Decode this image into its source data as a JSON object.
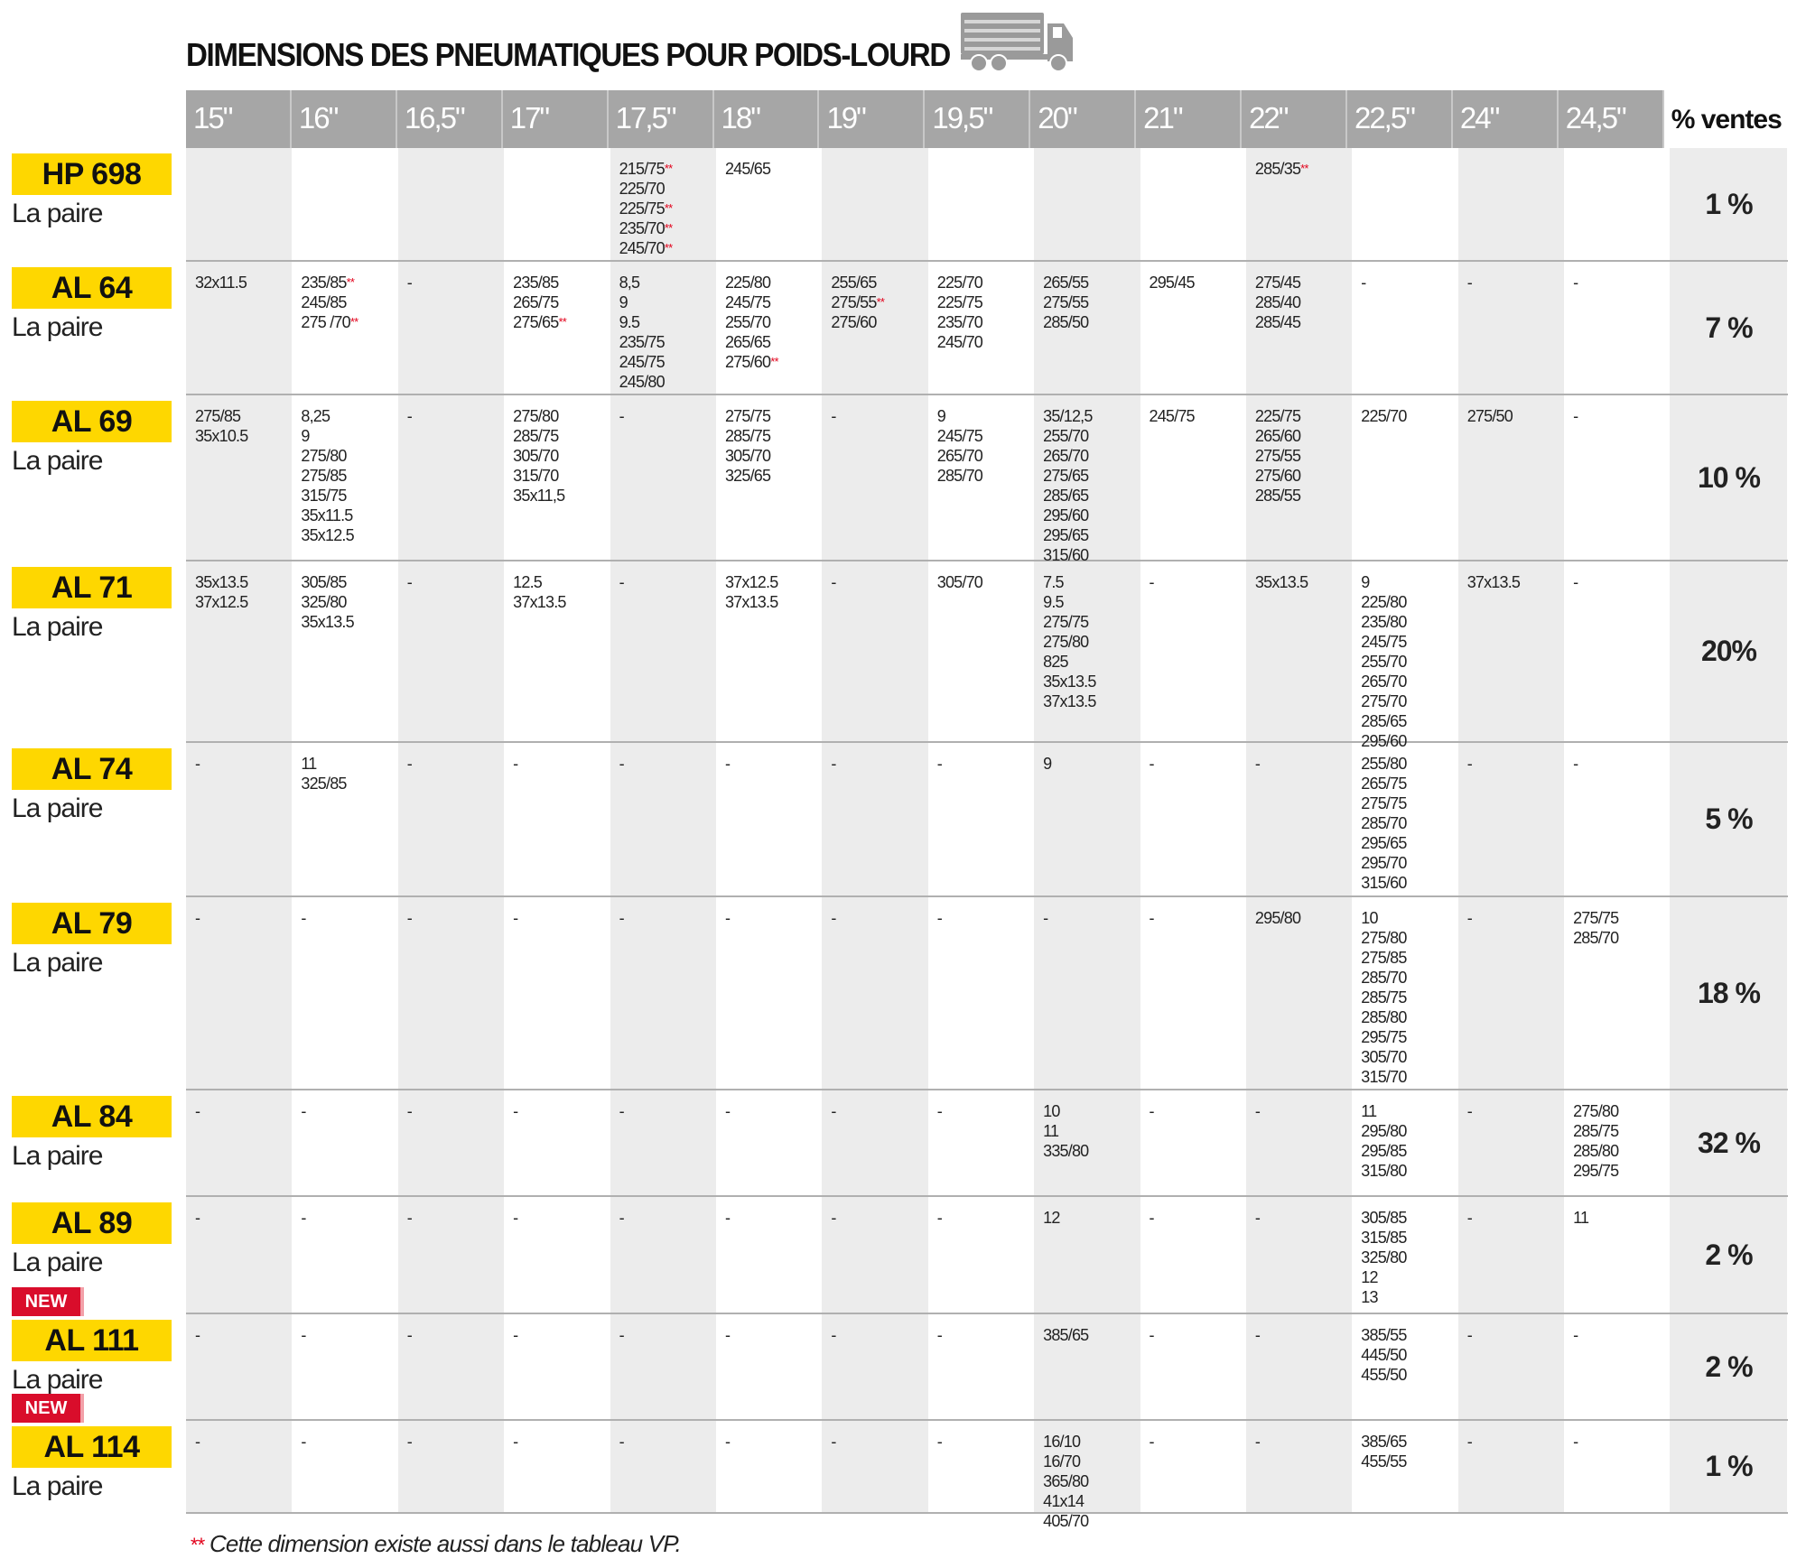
{
  "title": "DIMENSIONS DES PNEUMATIQUES POUR POIDS-LOURD",
  "icons": {
    "truck": "truck-icon"
  },
  "colors": {
    "label_bg": "#fed700",
    "new_badge": "#d90d2b",
    "header_bg": "#a6a6a6",
    "asterisk": "#e2001a"
  },
  "columns": [
    "15\"",
    "16\"",
    "16,5\"",
    "17\"",
    "17,5\"",
    "18\"",
    "19\"",
    "19,5\"",
    "20\"",
    "21\"",
    "22\"",
    "22,5\"",
    "24\"",
    "24,5\""
  ],
  "pct_header": "% ventes",
  "pair_label": "La paire",
  "new_label": "NEW",
  "rows": [
    {
      "model": "HP 698",
      "pct": "1 %",
      "new": false,
      "cells": [
        [],
        [],
        [],
        [],
        [
          "215/75**",
          "225/70",
          "225/75**",
          "235/70**",
          "245/70**"
        ],
        [
          "245/65"
        ],
        [],
        [],
        [],
        [],
        [
          "285/35**"
        ],
        [],
        [],
        []
      ]
    },
    {
      "model": "AL 64",
      "pct": "7 %",
      "new": false,
      "cells": [
        [
          "32x11.5"
        ],
        [
          "235/85**",
          "245/85",
          "275 /70**"
        ],
        [
          "-"
        ],
        [
          "235/85",
          "265/75",
          "275/65**"
        ],
        [
          "8,5",
          "9",
          "9.5",
          "235/75",
          "245/75",
          "245/80"
        ],
        [
          "225/80",
          "245/75",
          "255/70",
          "265/65",
          "275/60**"
        ],
        [
          "255/65",
          "275/55**",
          "275/60"
        ],
        [
          "225/70",
          "225/75",
          "235/70",
          "245/70"
        ],
        [
          "265/55",
          "275/55",
          "285/50"
        ],
        [
          "295/45"
        ],
        [
          "275/45",
          "285/40",
          "285/45"
        ],
        [
          "-"
        ],
        [
          "-"
        ],
        [
          "-"
        ]
      ]
    },
    {
      "model": "AL 69",
      "pct": "10 %",
      "new": false,
      "cells": [
        [
          "275/85",
          "35x10.5"
        ],
        [
          "8,25",
          "9",
          "275/80",
          "275/85",
          "315/75",
          "35x11.5",
          "35x12.5"
        ],
        [
          "-"
        ],
        [
          "275/80",
          "285/75",
          "305/70",
          "315/70",
          "35x11,5"
        ],
        [
          "-"
        ],
        [
          "275/75",
          "285/75",
          "305/70",
          "325/65"
        ],
        [
          "-"
        ],
        [
          "9",
          "245/75",
          "265/70",
          "285/70"
        ],
        [
          "35/12,5",
          "255/70",
          "265/70",
          "275/65",
          "285/65",
          "295/60",
          "295/65",
          "315/60"
        ],
        [
          "245/75"
        ],
        [
          "225/75",
          "265/60",
          "275/55",
          "275/60",
          "285/55"
        ],
        [
          "225/70"
        ],
        [
          "275/50"
        ],
        [
          "-"
        ]
      ]
    },
    {
      "model": "AL 71",
      "pct": "20%",
      "new": false,
      "cells": [
        [
          "35x13.5",
          "37x12.5"
        ],
        [
          "305/85",
          "325/80",
          "35x13.5"
        ],
        [
          "-"
        ],
        [
          "12.5",
          "37x13.5"
        ],
        [
          "-"
        ],
        [
          "37x12.5",
          "37x13.5"
        ],
        [
          "-"
        ],
        [
          "305/70"
        ],
        [
          "7.5",
          "9.5",
          "275/75",
          "275/80",
          "825",
          "35x13.5",
          "37x13.5"
        ],
        [
          "-"
        ],
        [
          "35x13.5"
        ],
        [
          "9",
          "225/80",
          "235/80",
          "245/75",
          "255/70",
          "265/70",
          "275/70",
          "285/65",
          "295/60"
        ],
        [
          "37x13.5"
        ],
        [
          "-"
        ]
      ]
    },
    {
      "model": "AL 74",
      "pct": "5 %",
      "new": false,
      "cells": [
        [
          "-"
        ],
        [
          "11",
          "325/85"
        ],
        [
          "-"
        ],
        [
          "-"
        ],
        [
          "-"
        ],
        [
          "-"
        ],
        [
          "-"
        ],
        [
          "-"
        ],
        [
          "9"
        ],
        [
          "-"
        ],
        [
          "-"
        ],
        [
          "255/80",
          "265/75",
          "275/75",
          "285/70",
          "295/65",
          "295/70",
          "315/60"
        ],
        [
          "-"
        ],
        [
          "-"
        ]
      ]
    },
    {
      "model": "AL 79",
      "pct": "18 %",
      "new": false,
      "cells": [
        [
          "-"
        ],
        [
          "-"
        ],
        [
          "-"
        ],
        [
          "-"
        ],
        [
          "-"
        ],
        [
          "-"
        ],
        [
          "-"
        ],
        [
          "-"
        ],
        [
          "-"
        ],
        [
          "-"
        ],
        [
          "295/80"
        ],
        [
          "10",
          "275/80",
          "275/85",
          "285/70",
          "285/75",
          "285/80",
          "295/75",
          "305/70",
          "315/70"
        ],
        [
          "-"
        ],
        [
          "275/75",
          "285/70"
        ]
      ]
    },
    {
      "model": "AL 84",
      "pct": "32 %",
      "new": false,
      "cells": [
        [
          "-"
        ],
        [
          "-"
        ],
        [
          "-"
        ],
        [
          "-"
        ],
        [
          "-"
        ],
        [
          "-"
        ],
        [
          "-"
        ],
        [
          "-"
        ],
        [
          "10",
          "11",
          "335/80"
        ],
        [
          "-"
        ],
        [
          "-"
        ],
        [
          "11",
          "295/80",
          "295/85",
          "315/80"
        ],
        [
          "-"
        ],
        [
          "275/80",
          "285/75",
          "285/80",
          "295/75"
        ]
      ]
    },
    {
      "model": "AL 89",
      "pct": "2 %",
      "new": false,
      "cells": [
        [
          "-"
        ],
        [
          "-"
        ],
        [
          "-"
        ],
        [
          "-"
        ],
        [
          "-"
        ],
        [
          "-"
        ],
        [
          "-"
        ],
        [
          "-"
        ],
        [
          "12"
        ],
        [
          "-"
        ],
        [
          "-"
        ],
        [
          "305/85",
          "315/85",
          "325/80",
          "12",
          "13"
        ],
        [
          "-"
        ],
        [
          "11"
        ]
      ]
    },
    {
      "model": "AL 111",
      "pct": "2 %",
      "new": true,
      "cells": [
        [
          "-"
        ],
        [
          "-"
        ],
        [
          "-"
        ],
        [
          "-"
        ],
        [
          "-"
        ],
        [
          "-"
        ],
        [
          "-"
        ],
        [
          "-"
        ],
        [
          "385/65"
        ],
        [
          "-"
        ],
        [
          "-"
        ],
        [
          "385/55",
          "445/50",
          "455/50"
        ],
        [
          "-"
        ],
        [
          "-"
        ]
      ]
    },
    {
      "model": "AL 114",
      "pct": "1 %",
      "new": true,
      "cells": [
        [
          "-"
        ],
        [
          "-"
        ],
        [
          "-"
        ],
        [
          "-"
        ],
        [
          "-"
        ],
        [
          "-"
        ],
        [
          "-"
        ],
        [
          "-"
        ],
        [
          "16/10",
          "16/70",
          "365/80",
          "41x14",
          "405/70"
        ],
        [
          "-"
        ],
        [
          "-"
        ],
        [
          "385/65",
          "455/55"
        ],
        [
          "-"
        ],
        [
          "-"
        ]
      ]
    }
  ],
  "footnote": {
    "marker": "**",
    "text": " Cette dimension existe aussi dans le tableau VP."
  }
}
